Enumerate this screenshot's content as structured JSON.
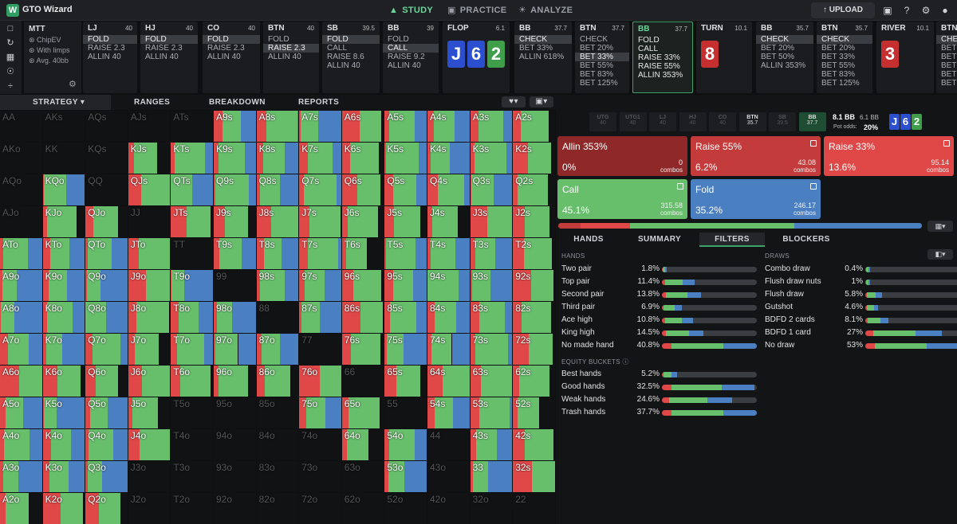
{
  "app": {
    "title": "GTO Wizard",
    "logo": "W"
  },
  "nav": {
    "tabs": [
      {
        "label": "STUDY",
        "icon": "▲",
        "active": true
      },
      {
        "label": "PRACTICE",
        "icon": "▣",
        "active": false
      },
      {
        "label": "ANALYZE",
        "icon": "☀",
        "active": false
      }
    ],
    "upload": "↑ UPLOAD"
  },
  "colors": {
    "red": "#e04848",
    "green": "#67be6b",
    "blue": "#4a7fc2",
    "darkred": "#8f2828"
  },
  "mtt": {
    "title": "MTT",
    "lines": [
      "⊛ ChipEV",
      "⊛ With limps",
      "⊛ Avg. 40bb"
    ]
  },
  "positions": [
    {
      "name": "LJ",
      "stack": "40",
      "actions": [
        "FOLD",
        "RAISE 2.3",
        "ALLIN 40"
      ],
      "hl": 0
    },
    {
      "name": "HJ",
      "stack": "40",
      "actions": [
        "FOLD",
        "RAISE 2.3",
        "ALLIN 40"
      ],
      "hl": 0
    },
    {
      "name": "CO",
      "stack": "40",
      "actions": [
        "FOLD",
        "RAISE 2.3",
        "ALLIN 40"
      ],
      "hl": 0
    },
    {
      "name": "BTN",
      "stack": "40",
      "actions": [
        "FOLD",
        "RAISE 2.3",
        "ALLIN 40"
      ],
      "hl": 1
    },
    {
      "name": "SB",
      "stack": "39.5",
      "actions": [
        "FOLD",
        "CALL",
        "RAISE 8.6",
        "ALLIN 40"
      ],
      "hl": 0
    },
    {
      "name": "BB",
      "stack": "39",
      "actions": [
        "FOLD",
        "CALL",
        "RAISE 9.2",
        "ALLIN 40"
      ],
      "hl": 1
    },
    {
      "name": "FLOP",
      "stack": "6.1",
      "cards": [
        {
          "r": "J",
          "c": "#2b4fcf"
        },
        {
          "r": "6",
          "c": "#2b4fcf"
        },
        {
          "r": "2",
          "c": "#3f9e4a"
        }
      ]
    },
    {
      "name": "BB",
      "stack": "37.7",
      "actions": [
        "CHECK",
        "BET 33%",
        "ALLIN 618%"
      ],
      "hl": 0
    },
    {
      "name": "BTN",
      "stack": "37.7",
      "actions": [
        "CHECK",
        "BET 20%",
        "BET 33%",
        "BET 55%",
        "BET 83%",
        "BET 125%"
      ],
      "hl": 2
    },
    {
      "name": "BB",
      "stack": "37.7",
      "actions": [
        "FOLD",
        "CALL",
        "RAISE 33%",
        "RAISE 55%",
        "ALLIN 353%"
      ],
      "hl": -1,
      "sel": true
    },
    {
      "name": "TURN",
      "stack": "10.1",
      "cards": [
        {
          "r": "8",
          "c": "#c62f2f"
        }
      ]
    },
    {
      "name": "BB",
      "stack": "35.7",
      "actions": [
        "CHECK",
        "BET 20%",
        "BET 50%",
        "ALLIN 353%"
      ],
      "hl": 0
    },
    {
      "name": "BTN",
      "stack": "35.7",
      "actions": [
        "CHECK",
        "BET 20%",
        "BET 33%",
        "BET 55%",
        "BET 83%",
        "BET 125%"
      ],
      "hl": 0
    },
    {
      "name": "RIVER",
      "stack": "10.1",
      "cards": [
        {
          "r": "3",
          "c": "#c62f2f"
        }
      ]
    },
    {
      "name": "BTN",
      "stack": "",
      "actions": [
        "CHE",
        "BET",
        "BET",
        "BET",
        "BET",
        "BET"
      ],
      "hl": 0
    }
  ],
  "strategy_tabs": [
    "STRATEGY ▾",
    "RANGES",
    "BREAKDOWN",
    "REPORTS"
  ],
  "seats": [
    {
      "n": "UTG",
      "v": "40"
    },
    {
      "n": "UTG1",
      "v": "40"
    },
    {
      "n": "LJ",
      "v": "40"
    },
    {
      "n": "HJ",
      "v": "40"
    },
    {
      "n": "CO",
      "v": "40"
    },
    {
      "n": "BTN",
      "v": "35.7",
      "on": true
    },
    {
      "n": "SB",
      "v": "39.5"
    },
    {
      "n": "BB",
      "v": "37.7",
      "on": true,
      "green": true
    }
  ],
  "pot": {
    "main": "8.1 BB",
    "side": "6.1 BB",
    "odds_label": "Pot odds:",
    "odds": "20%",
    "board": [
      {
        "r": "J",
        "c": "#2b4fcf"
      },
      {
        "r": "6",
        "c": "#2b4fcf"
      },
      {
        "r": "2",
        "c": "#3f9e4a"
      }
    ]
  },
  "actions": [
    {
      "name": "Allin 353%",
      "pct": "0%",
      "combos": "0",
      "color": "#8f2828"
    },
    {
      "name": "Raise 55%",
      "pct": "6.2%",
      "combos": "43.08",
      "color": "#c43b3b"
    },
    {
      "name": "Raise 33%",
      "pct": "13.6%",
      "combos": "95.14",
      "color": "#e04848"
    },
    {
      "name": "Call",
      "pct": "45.1%",
      "combos": "315.58",
      "color": "#67be6b"
    },
    {
      "name": "Fold",
      "pct": "35.2%",
      "combos": "246.17",
      "color": "#4a7fc2"
    }
  ],
  "combos_label": "combos",
  "right_tabs": [
    "HANDS",
    "SUMMARY",
    "FILTERS",
    "BLOCKERS"
  ],
  "filters": {
    "hands_title": "HANDS",
    "draws_title": "DRAWS",
    "equity_title": "EQUITY BUCKETS ⓘ",
    "hands": [
      {
        "n": "Two pair",
        "p": "1.8%",
        "f": 0.018
      },
      {
        "n": "Top pair",
        "p": "11.4%",
        "f": 0.114
      },
      {
        "n": "Second pair",
        "p": "13.8%",
        "f": 0.138
      },
      {
        "n": "Third pair",
        "p": "6.9%",
        "f": 0.069
      },
      {
        "n": "Ace high",
        "p": "10.8%",
        "f": 0.108
      },
      {
        "n": "King high",
        "p": "14.5%",
        "f": 0.145
      },
      {
        "n": "No made hand",
        "p": "40.8%",
        "f": 0.408
      }
    ],
    "draws": [
      {
        "n": "Combo draw",
        "p": "0.4%",
        "f": 0.004
      },
      {
        "n": "Flush draw nuts",
        "p": "1%",
        "f": 0.01
      },
      {
        "n": "Flush draw",
        "p": "5.8%",
        "f": 0.058
      },
      {
        "n": "Gutshot",
        "p": "4.6%",
        "f": 0.046
      },
      {
        "n": "BDFD 2 cards",
        "p": "8.1%",
        "f": 0.081
      },
      {
        "n": "BDFD 1 card",
        "p": "27%",
        "f": 0.27
      },
      {
        "n": "No draw",
        "p": "53%",
        "f": 0.53
      }
    ],
    "equity": [
      {
        "n": "Best hands",
        "p": "5.2%",
        "f": 0.052
      },
      {
        "n": "Good hands",
        "p": "32.5%",
        "f": 0.325
      },
      {
        "n": "Weak hands",
        "p": "24.6%",
        "f": 0.246
      },
      {
        "n": "Trash hands",
        "p": "37.7%",
        "f": 0.377
      }
    ]
  },
  "grid": {
    "ranks": [
      "A",
      "K",
      "Q",
      "J",
      "T",
      "9",
      "8",
      "7",
      "6",
      "5",
      "4",
      "3",
      "2"
    ]
  }
}
